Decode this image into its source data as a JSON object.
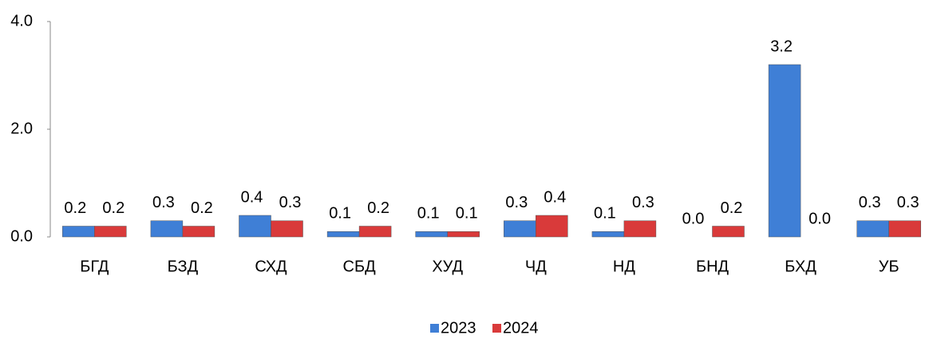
{
  "chart_data": {
    "type": "bar",
    "categories": [
      "БГД",
      "БЗД",
      "СХД",
      "СБД",
      "ХУД",
      "ЧД",
      "НД",
      "БНД",
      "БХД",
      "УБ"
    ],
    "series": [
      {
        "name": "2023",
        "color": "#3f7fd6",
        "values": [
          0.2,
          0.3,
          0.4,
          0.1,
          0.1,
          0.3,
          0.1,
          0,
          3.2,
          0.3
        ],
        "value_labels": [
          "0.2",
          "0.3",
          "0.4",
          "0.1",
          "0.1",
          "0.3",
          "0.1",
          "0.0",
          "3.2",
          "0.3"
        ]
      },
      {
        "name": "2024",
        "color": "#d93a3a",
        "values": [
          0.2,
          0.2,
          0.3,
          0.2,
          0.1,
          0.4,
          0.3,
          0.2,
          0,
          0.3
        ],
        "value_labels": [
          "0.2",
          "0.2",
          "0.3",
          "0.2",
          "0.1",
          "0.4",
          "0.3",
          "0.2",
          "0.0",
          "0.3"
        ]
      }
    ],
    "ylim": [
      0,
      4
    ],
    "yticks": [
      {
        "value": 0,
        "label": "0.0"
      },
      {
        "value": 2,
        "label": "2.0"
      },
      {
        "value": 4,
        "label": "4.0"
      }
    ],
    "legend": "bottom"
  }
}
